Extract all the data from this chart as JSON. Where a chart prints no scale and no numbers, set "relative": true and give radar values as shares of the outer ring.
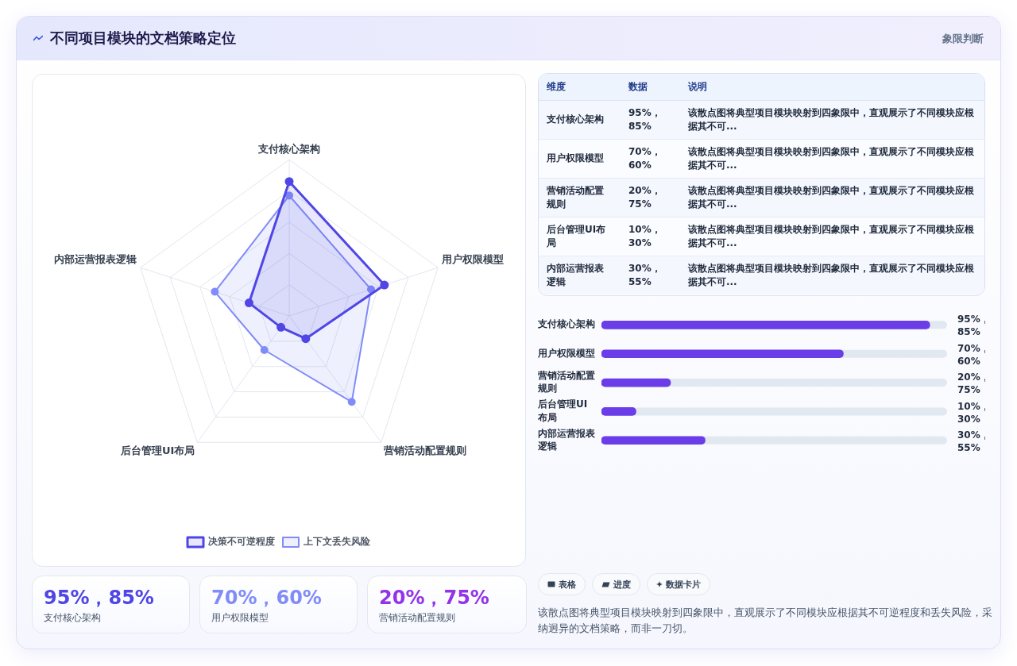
{
  "chart_data": [
    {
      "type": "other",
      "title": "不同项目模块的文档策略定位",
      "subtitle": "象限判断"
    },
    {
      "type": "radar",
      "relative": true,
      "categories": [
        "支付核心架构",
        "用户权限模型",
        "营销活动配置规则",
        "后台管理UI布局",
        "内部运营报表逻辑"
      ],
      "series": [
        {
          "name": "决策不可逆程度",
          "color": "#4f46e5",
          "values": [
            0.86,
            0.64,
            0.18,
            0.09,
            0.27
          ]
        },
        {
          "name": "上下文丢失风险",
          "color": "#818cf8",
          "values": [
            0.77,
            0.55,
            0.68,
            0.27,
            0.5
          ]
        }
      ],
      "tick_labels": "x",
      "grid": true,
      "legend": "bottom",
      "marker": "circle"
    },
    {
      "type": "other",
      "categories": [
        "支付核心架构",
        "用户权限模型",
        "营销活动配置规则"
      ],
      "value_labels": [
        "95%，85%",
        "70%，60%",
        "20%，75%"
      ]
    },
    {
      "type": "other",
      "categories": [
        "维度",
        "数据",
        "说明"
      ],
      "cell_labels": [
        [
          "支付核心架构",
          "95%，85%",
          "该散点图将典型项目模块映射到四象限中，直观展示了不同模块应根据其不可..."
        ],
        [
          "用户权限模型",
          "70%，60%",
          "该散点图将典型项目模块映射到四象限中，直观展示了不同模块应根据其不可..."
        ],
        [
          "营销活动配置规则",
          "20%，75%",
          "该散点图将典型项目模块映射到四象限中，直观展示了不同模块应根据其不可..."
        ],
        [
          "后台管理UI布局",
          "10%，30%",
          "该散点图将典型项目模块映射到四象限中，直观展示了不同模块应根据其不可..."
        ],
        [
          "内部运营报表逻辑",
          "30%，55%",
          "该散点图将典型项目模块映射到四象限中，直观展示了不同模块应根据其不可..."
        ]
      ]
    },
    {
      "type": "bar",
      "orientation": "horizontal",
      "categories": [
        "支付核心架构",
        "用户权限模型",
        "营销活动配置规则",
        "后台管理UI布局",
        "内部运营报表逻辑"
      ],
      "values": [
        95,
        70,
        20,
        10,
        30
      ],
      "color": "#6a3de8",
      "value_labels": [
        "95%，85%",
        "70%，60%",
        "20%，75%",
        "10%，30%",
        "30%，55%"
      ],
      "xlim": [
        0,
        100
      ],
      "tick_labels": "y"
    },
    {
      "type": "other",
      "categories": [
        "表格",
        "进度",
        "数据卡片"
      ],
      "annotations": [
        "该散点图将典型项目模块映射到四象限中，直观展示了不同模块应根据其不可逆程度和丢失风险，采纳迥异的文档策略，而非一刀切。"
      ]
    }
  ]
}
